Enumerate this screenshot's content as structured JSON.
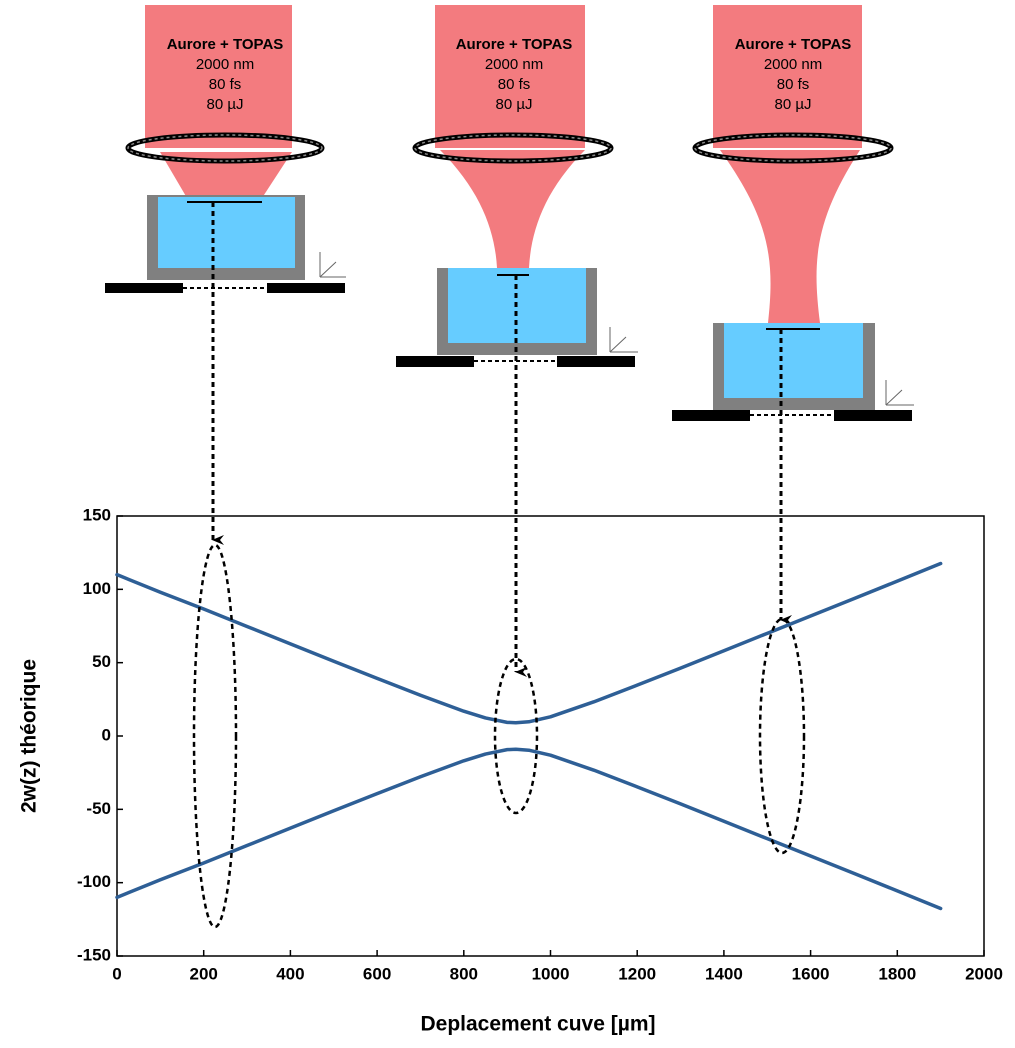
{
  "diagram": {
    "panels": [
      {
        "lines": [
          "Aurore + TOPAS",
          "2000 nm",
          "80 fs",
          "80 µJ"
        ]
      },
      {
        "lines": [
          "Aurore + TOPAS",
          "2000 nm",
          "80 fs",
          "80 µJ"
        ]
      },
      {
        "lines": [
          "Aurore + TOPAS",
          "2000 nm",
          "80 fs",
          "80 µJ"
        ]
      }
    ]
  },
  "chart_data": {
    "type": "line",
    "x_label": "Deplacement cuve [µm]",
    "y_label": "2w(z) théorique",
    "x": [
      0,
      100,
      200,
      300,
      400,
      500,
      600,
      700,
      800,
      850,
      900,
      920,
      950,
      1000,
      1100,
      1200,
      1300,
      1400,
      1500,
      1600,
      1700,
      1800,
      1900
    ],
    "series": [
      {
        "color": "#2e5f96",
        "values": [
          110,
          98,
          86.6,
          74.7,
          62.8,
          51,
          39.3,
          27.8,
          16.9,
          12.3,
          9.3,
          9,
          9.7,
          13.1,
          23.3,
          34.7,
          46.3,
          58.1,
          70,
          81.8,
          93.7,
          105.6,
          117.6
        ]
      },
      {
        "color": "#2e5f96",
        "values": [
          -110,
          -98,
          -86.6,
          -74.7,
          -62.8,
          -51,
          -39.3,
          -27.8,
          -16.9,
          -12.3,
          -9.3,
          -9,
          -9.7,
          -13.1,
          -23.3,
          -34.7,
          -46.3,
          -58.1,
          -70,
          -81.8,
          -93.7,
          -105.6,
          -117.6
        ]
      }
    ],
    "xlim": [
      0,
      2000
    ],
    "xticks": [
      0,
      200,
      400,
      600,
      800,
      1000,
      1200,
      1400,
      1600,
      1800,
      2000
    ],
    "ylim": [
      -150,
      150
    ],
    "yticks": [
      -150,
      -100,
      -50,
      0,
      50,
      100,
      150
    ]
  }
}
